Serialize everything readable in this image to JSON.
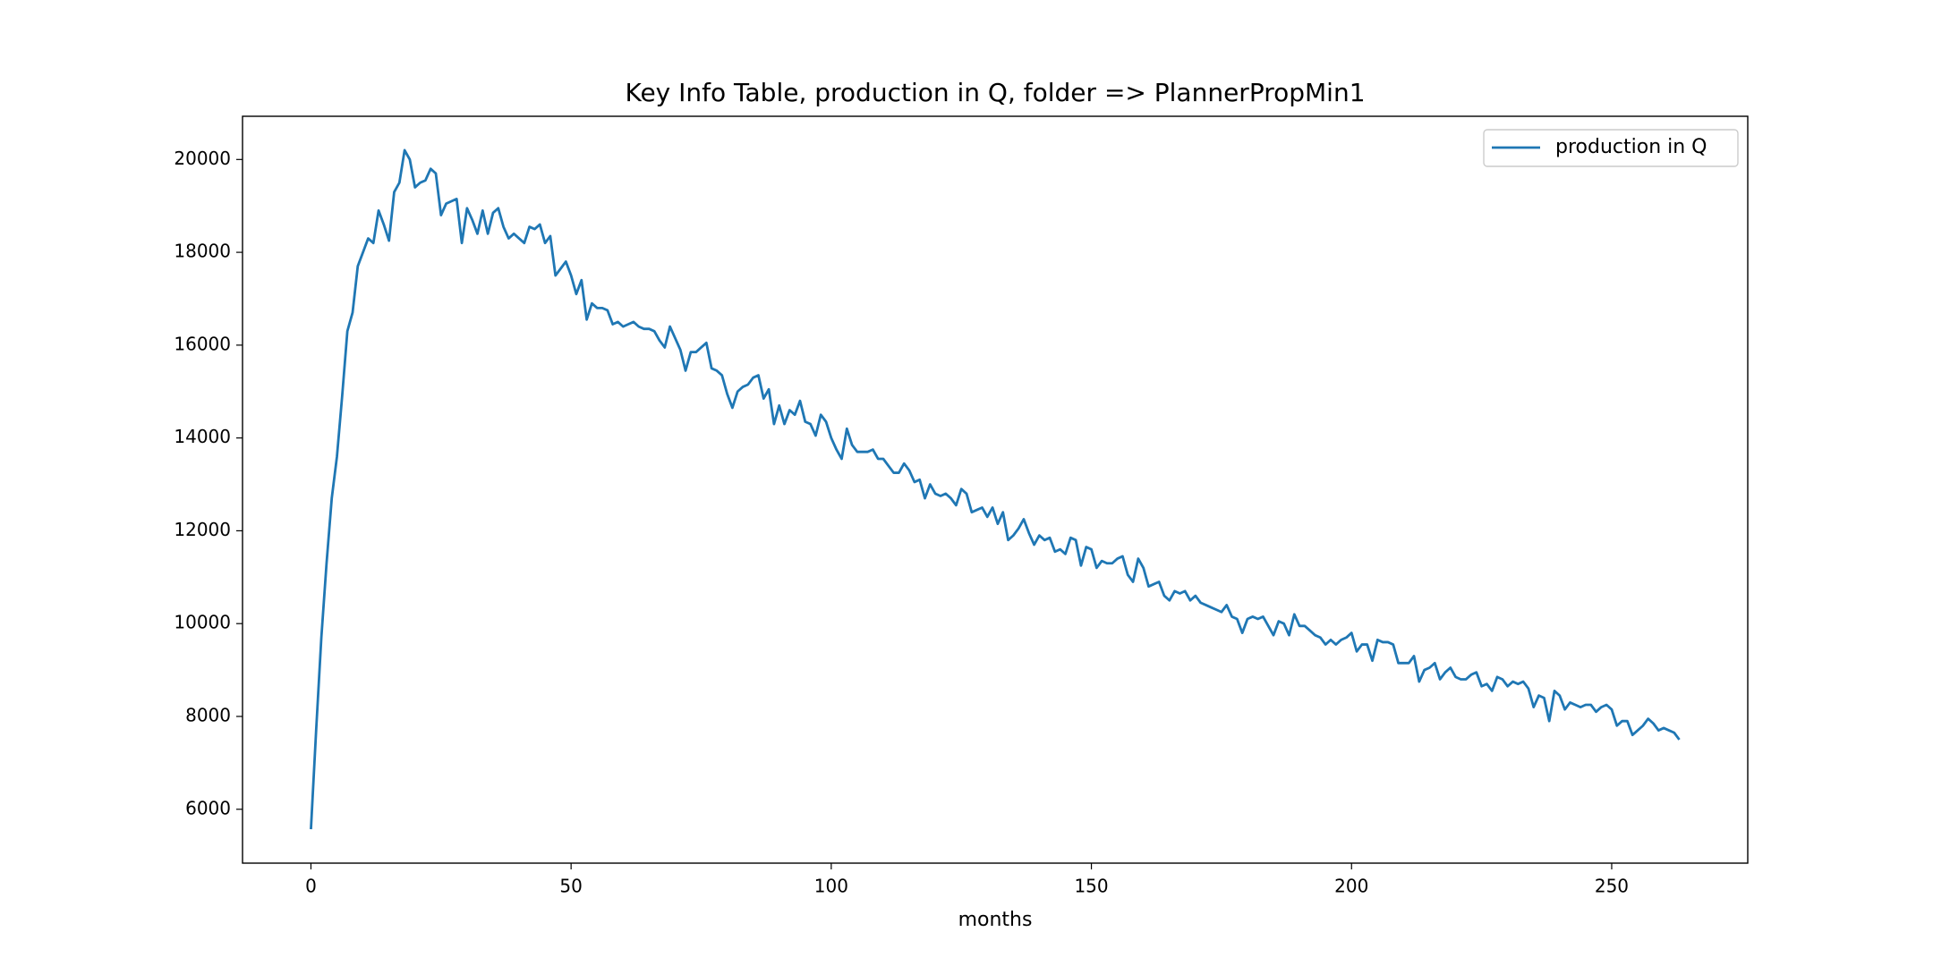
{
  "chart_data": {
    "type": "line",
    "title": "Key Info Table, production in Q, folder => PlannerPropMin1",
    "x_label": "months",
    "x": [
      0,
      1,
      2,
      3,
      4,
      5,
      6,
      7,
      8,
      9,
      10,
      11,
      12,
      13,
      14,
      15,
      16,
      17,
      18,
      19,
      20,
      21,
      22,
      23,
      24,
      25,
      26,
      27,
      28,
      29,
      30,
      31,
      32,
      33,
      34,
      35,
      36,
      37,
      38,
      39,
      40,
      41,
      42,
      43,
      44,
      45,
      46,
      47,
      48,
      49,
      50,
      51,
      52,
      53,
      54,
      55,
      56,
      57,
      58,
      59,
      60,
      61,
      62,
      63,
      64,
      65,
      66,
      67,
      68,
      69,
      70,
      71,
      72,
      73,
      74,
      75,
      76,
      77,
      78,
      79,
      80,
      81,
      82,
      83,
      84,
      85,
      86,
      87,
      88,
      89,
      90,
      91,
      92,
      93,
      94,
      95,
      96,
      97,
      98,
      99,
      100,
      101,
      102,
      103,
      104,
      105,
      106,
      107,
      108,
      109,
      110,
      111,
      112,
      113,
      114,
      115,
      116,
      117,
      118,
      119,
      120,
      121,
      122,
      123,
      124,
      125,
      126,
      127,
      128,
      129,
      130,
      131,
      132,
      133,
      134,
      135,
      136,
      137,
      138,
      139,
      140,
      141,
      142,
      143,
      144,
      145,
      146,
      147,
      148,
      149,
      150,
      151,
      152,
      153,
      154,
      155,
      156,
      157,
      158,
      159,
      160,
      161,
      162,
      163,
      164,
      165,
      166,
      167,
      168,
      169,
      170,
      171,
      172,
      173,
      174,
      175,
      176,
      177,
      178,
      179,
      180,
      181,
      182,
      183,
      184,
      185,
      186,
      187,
      188,
      189,
      190,
      191,
      192,
      193,
      194,
      195,
      196,
      197,
      198,
      199,
      200,
      201,
      202,
      203,
      204,
      205,
      206,
      207,
      208,
      209,
      210,
      211,
      212,
      213,
      214,
      215,
      216,
      217,
      218,
      219,
      220,
      221,
      222,
      223,
      224,
      225,
      226,
      227,
      228,
      229,
      230,
      231,
      232,
      233,
      234,
      235,
      236,
      237,
      238,
      239,
      240,
      241,
      242,
      243,
      244,
      245,
      246,
      247,
      248,
      249,
      250,
      251,
      252,
      253,
      254,
      255,
      256,
      257,
      258,
      259,
      260,
      261,
      262,
      263
    ],
    "series": [
      {
        "name": "production in Q",
        "color": "#1f77b4",
        "values": [
          5570,
          7700,
          9700,
          11300,
          12700,
          13600,
          14900,
          16300,
          16700,
          17700,
          18000,
          18300,
          18200,
          18900,
          18600,
          18250,
          19300,
          19500,
          20200,
          20000,
          19400,
          19500,
          19550,
          19800,
          19700,
          18800,
          19050,
          19100,
          19150,
          18200,
          18950,
          18700,
          18400,
          18900,
          18400,
          18850,
          18950,
          18550,
          18300,
          18400,
          18300,
          18200,
          18550,
          18500,
          18600,
          18200,
          18350,
          17500,
          17650,
          17800,
          17500,
          17100,
          17400,
          16550,
          16900,
          16800,
          16800,
          16750,
          16450,
          16500,
          16400,
          16450,
          16500,
          16400,
          16350,
          16350,
          16300,
          16100,
          15950,
          16400,
          16150,
          15900,
          15450,
          15850,
          15850,
          15950,
          16050,
          15500,
          15450,
          15350,
          14950,
          14650,
          15000,
          15100,
          15150,
          15300,
          15350,
          14850,
          15050,
          14300,
          14700,
          14300,
          14600,
          14500,
          14800,
          14350,
          14300,
          14050,
          14500,
          14350,
          14000,
          13750,
          13550,
          14200,
          13850,
          13700,
          13700,
          13700,
          13750,
          13550,
          13550,
          13400,
          13250,
          13250,
          13450,
          13300,
          13050,
          13100,
          12700,
          13000,
          12800,
          12750,
          12800,
          12700,
          12550,
          12900,
          12800,
          12400,
          12450,
          12500,
          12300,
          12500,
          12150,
          12400,
          11800,
          11900,
          12050,
          12250,
          11950,
          11700,
          11900,
          11800,
          11850,
          11550,
          11600,
          11500,
          11850,
          11800,
          11250,
          11650,
          11600,
          11200,
          11350,
          11300,
          11300,
          11400,
          11450,
          11050,
          10900,
          11400,
          11200,
          10800,
          10850,
          10900,
          10600,
          10500,
          10700,
          10650,
          10700,
          10500,
          10600,
          10450,
          10400,
          10350,
          10300,
          10250,
          10400,
          10150,
          10100,
          9800,
          10100,
          10150,
          10100,
          10150,
          9950,
          9750,
          10050,
          10000,
          9750,
          10200,
          9950,
          9950,
          9850,
          9750,
          9700,
          9550,
          9650,
          9550,
          9650,
          9700,
          9800,
          9400,
          9550,
          9550,
          9200,
          9650,
          9600,
          9600,
          9550,
          9150,
          9150,
          9150,
          9300,
          8750,
          9000,
          9050,
          9150,
          8800,
          8950,
          9050,
          8850,
          8800,
          8800,
          8900,
          8950,
          8650,
          8700,
          8550,
          8850,
          8800,
          8650,
          8750,
          8700,
          8750,
          8600,
          8200,
          8450,
          8400,
          7900,
          8550,
          8450,
          8150,
          8300,
          8250,
          8200,
          8250,
          8250,
          8100,
          8200,
          8250,
          8150,
          7800,
          7900,
          7900,
          7600,
          7700,
          7800,
          7950,
          7850,
          7700,
          7750,
          7700,
          7650,
          7500
        ]
      }
    ],
    "xlim": [
      -13.15,
      276.15
    ],
    "xticks": [
      0,
      50,
      100,
      150,
      200,
      250
    ],
    "ylim": [
      4839,
      20931
    ],
    "yticks": [
      6000,
      8000,
      10000,
      12000,
      14000,
      16000,
      18000,
      20000
    ],
    "legend": "upper right",
    "grid": false
  }
}
